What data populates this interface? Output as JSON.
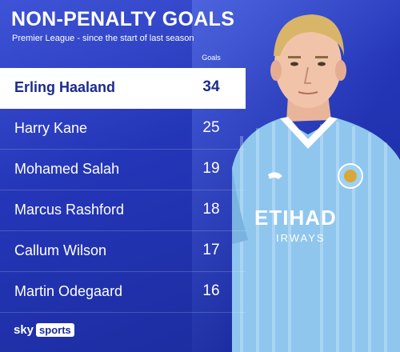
{
  "header": {
    "title": "NON-PENALTY GOALS",
    "subtitle": "Premier League - since the start of last season",
    "column_label": "Goals"
  },
  "rows": [
    {
      "name": "Erling Haaland",
      "goals": "34",
      "highlight": true
    },
    {
      "name": "Harry Kane",
      "goals": "25"
    },
    {
      "name": "Mohamed Salah",
      "goals": "19"
    },
    {
      "name": "Marcus Rashford",
      "goals": "18"
    },
    {
      "name": "Callum Wilson",
      "goals": "17"
    },
    {
      "name": "Martin Odegaard",
      "goals": "16"
    }
  ],
  "shirt": {
    "sponsor_top": "ETIHAD",
    "sponsor_bottom": "IRWAYS"
  },
  "branding": {
    "sky": "sky",
    "sports": "sports"
  },
  "colors": {
    "background": "#2436b8",
    "highlight_row": "#ffffff",
    "highlight_text": "#1b2a8e",
    "shirt": "#8fc6ee"
  }
}
